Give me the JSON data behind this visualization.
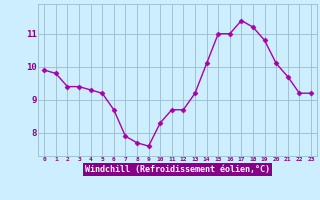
{
  "x": [
    0,
    1,
    2,
    3,
    4,
    5,
    6,
    7,
    8,
    9,
    10,
    11,
    12,
    13,
    14,
    15,
    16,
    17,
    18,
    19,
    20,
    21,
    22,
    23
  ],
  "y": [
    9.9,
    9.8,
    9.4,
    9.4,
    9.3,
    9.2,
    8.7,
    7.9,
    7.7,
    7.6,
    8.3,
    8.7,
    8.7,
    9.2,
    10.1,
    11.0,
    11.0,
    11.4,
    11.2,
    10.8,
    10.1,
    9.7,
    9.2,
    9.2
  ],
  "line_color": "#aa00aa",
  "marker": "D",
  "marker_size": 2.5,
  "bg_color": "#cceeff",
  "grid_color": "#99bbcc",
  "xlabel": "Windchill (Refroidissement éolien,°C)",
  "xlabel_color": "#880088",
  "xlabel_bg": "#880088",
  "ylim": [
    7.3,
    11.9
  ],
  "yticks": [
    8,
    9,
    10,
    11
  ],
  "xticks": [
    0,
    1,
    2,
    3,
    4,
    5,
    6,
    7,
    8,
    9,
    10,
    11,
    12,
    13,
    14,
    15,
    16,
    17,
    18,
    19,
    20,
    21,
    22,
    23
  ]
}
